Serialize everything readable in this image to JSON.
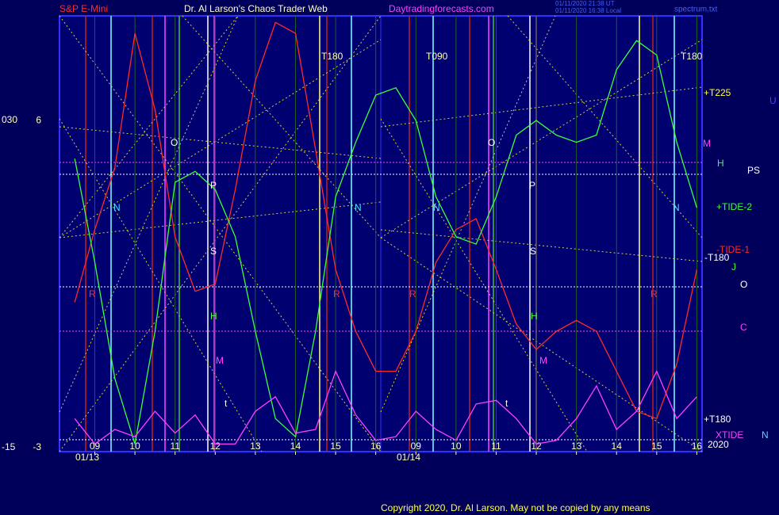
{
  "chart_data": {
    "type": "line",
    "title": "Dr. Al Larson's Chaos Trader Web",
    "instrument": "S&P E-Mini",
    "website": "Daytradingforecasts.com",
    "timestamps": [
      "01/11/2020 21:38 UT",
      "01/11/2020 16:38 Local"
    ],
    "file": "spectrum.txt",
    "dates": [
      "01/13",
      "01/14"
    ],
    "copyright": "Copyright 2020, Dr. Al Larson. May not be copied by any means",
    "x": [
      8.5,
      9,
      9.5,
      10,
      10.5,
      11,
      11.5,
      12,
      12.5,
      13,
      13.5,
      14,
      14.5,
      15,
      15.5,
      16,
      16.5,
      17,
      17.5,
      18,
      18.5,
      19,
      19.5,
      20,
      20.5,
      21,
      21.5,
      22,
      22.5,
      23,
      23.5,
      24
    ],
    "xlim": [
      8.12,
      24.13
    ],
    "xticks": [
      {
        "value": 9,
        "label": "09"
      },
      10,
      11,
      12,
      13,
      14,
      15,
      16,
      {
        "value": 17,
        "label": "09"
      },
      {
        "value": 18,
        "label": "10"
      },
      {
        "value": 19,
        "label": "11"
      },
      {
        "value": 20,
        "label": "12"
      },
      {
        "value": 21,
        "label": "13"
      },
      {
        "value": 22,
        "label": "14"
      },
      {
        "value": 23,
        "label": "15"
      },
      {
        "value": 24,
        "label": "16"
      }
    ],
    "ylim": [
      -3.11,
      8.88
    ],
    "yticks": [
      6,
      -3
    ],
    "y2lim": [
      -15.54,
      44.38
    ],
    "y2ticks": [
      {
        "value": 30,
        "label": "030"
      },
      -15
    ],
    "grid": true,
    "series": [
      {
        "color": "#ff2a2a",
        "values": [
          1.0,
          3.0,
          4.7,
          8.4,
          6.3,
          2.8,
          1.3,
          1.5,
          4.1,
          7.1,
          8.7,
          8.4,
          5.2,
          1.9,
          0.2,
          -0.9,
          -0.9,
          0.2,
          2.1,
          3.0,
          3.3,
          1.9,
          0.4,
          -0.3,
          0.2,
          0.5,
          0.2,
          -0.9,
          -2.0,
          -2.2,
          -0.7,
          1.9
        ]
      },
      {
        "color": "#3cff3c",
        "values": [
          4.95,
          2.1,
          -1.1,
          -2.9,
          0.2,
          4.3,
          4.6,
          4.1,
          2.8,
          0.2,
          -2.2,
          -2.7,
          0.2,
          3.9,
          5.4,
          6.7,
          6.9,
          6.0,
          3.9,
          2.8,
          2.6,
          3.9,
          5.6,
          6.0,
          5.6,
          5.4,
          5.6,
          7.4,
          8.2,
          7.8,
          5.4,
          3.6
        ]
      },
      {
        "color": "#ff40ff",
        "values": [
          -2.2,
          -2.9,
          -2.5,
          -2.7,
          -2.0,
          -2.6,
          -2.1,
          -2.9,
          -2.9,
          -2.0,
          -1.6,
          -2.6,
          -2.5,
          -0.9,
          -2.1,
          -2.8,
          -2.7,
          -2.0,
          -2.5,
          -2.8,
          -1.8,
          -1.7,
          -2.2,
          -2.9,
          -2.8,
          -2.2,
          -1.3,
          -2.5,
          -2.0,
          -0.9,
          -2.2,
          -1.6
        ]
      }
    ],
    "annotations": [
      {
        "text": "T180",
        "color": "#ffffc0"
      },
      {
        "text": "T090",
        "color": "#ffffc0"
      },
      {
        "text": "T180",
        "color": "#ffffc0"
      },
      {
        "text": "+T225",
        "color": "#ffff40"
      },
      {
        "text": "M",
        "color": "#ff40ff"
      },
      {
        "text": "H",
        "color": "#3cff3c"
      },
      {
        "text": "PS",
        "color": "#ffffff"
      },
      {
        "text": "+TIDE-2",
        "color": "#3cff3c"
      },
      {
        "text": "-TIDE-1",
        "color": "#ff2a2a"
      },
      {
        "text": "-T180",
        "color": "#ffffff"
      },
      {
        "text": "J",
        "color": "#3cff3c"
      },
      {
        "text": "O",
        "color": "#ffffff"
      },
      {
        "text": "C",
        "color": "#ff40ff"
      },
      {
        "text": "+T180",
        "color": "#ffffff"
      },
      {
        "text": "XTIDE",
        "color": "#ff40ff"
      },
      {
        "text": "2020",
        "color": "#ffffff"
      },
      {
        "text": "N",
        "color": "#40e0ff"
      },
      {
        "text": "U",
        "color": "#4040ff"
      },
      {
        "text": "O",
        "color": "#ffffff"
      },
      {
        "text": "P",
        "color": "#ffffff"
      },
      {
        "text": "S",
        "color": "#ffffff"
      },
      {
        "text": "N",
        "color": "#40e0ff"
      },
      {
        "text": "N",
        "color": "#40e0ff"
      },
      {
        "text": "O",
        "color": "#ffffff"
      },
      {
        "text": "P",
        "color": "#ffffff"
      },
      {
        "text": "S",
        "color": "#ffffff"
      },
      {
        "text": "N",
        "color": "#40e0ff"
      },
      {
        "text": "N",
        "color": "#40e0ff"
      },
      {
        "text": "M",
        "color": "#ff40ff"
      },
      {
        "text": "M",
        "color": "#ff40ff"
      },
      {
        "text": "H",
        "color": "#3cff3c"
      },
      {
        "text": "H",
        "color": "#3cff3c"
      },
      {
        "text": "R",
        "color": "#ff2a2a"
      },
      {
        "text": "R",
        "color": "#ff2a2a"
      },
      {
        "text": "R",
        "color": "#ff2a2a"
      },
      {
        "text": "R",
        "color": "#ff2a2a"
      },
      {
        "text": "t",
        "color": "#ffffff"
      },
      {
        "text": "t",
        "color": "#ffffff"
      }
    ]
  }
}
